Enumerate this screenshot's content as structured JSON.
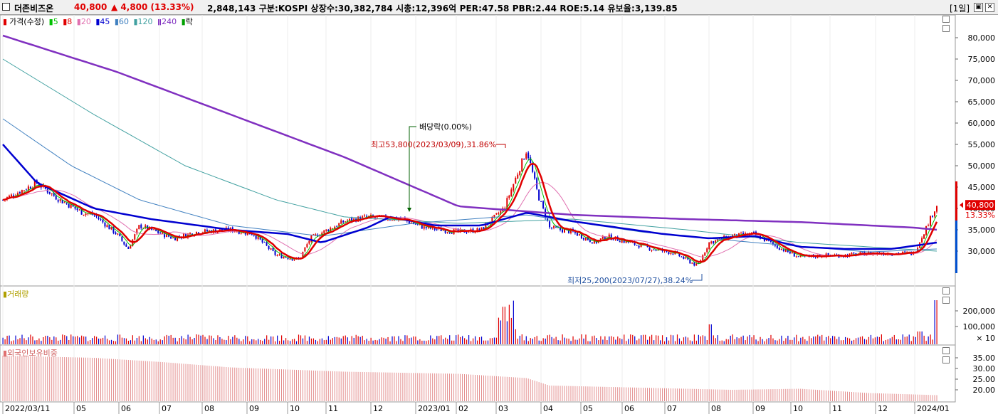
{
  "titlebar": {
    "stock_name": "더존비즈온",
    "price": "40,800",
    "change": "▲ 4,800 (13.33%)",
    "stats": "2,848,143  구분:KOSPI  상장수:30,382,784  시총:12,396억  PER:47.58  PBR:2.44  ROE:5.14  유보율:3,139.85",
    "period": "[1일]"
  },
  "legend": {
    "price_label": "가격(수정)",
    "ma_items": [
      {
        "label": "5",
        "color": "#00c000"
      },
      {
        "label": "8",
        "color": "#e00000"
      },
      {
        "label": "20",
        "color": "#e070b0"
      },
      {
        "label": "45",
        "color": "#0000d0"
      },
      {
        "label": "60",
        "color": "#4080c0"
      },
      {
        "label": "120",
        "color": "#40a0a0"
      },
      {
        "label": "240",
        "color": "#8030c0"
      }
    ],
    "extra_label": "락"
  },
  "annotations": {
    "dividend": "배당락(0.00%)",
    "high": "최고53,800(2023/03/09),31.86%",
    "low": "최저25,200(2023/07/27),38.24%"
  },
  "price_axis": [
    "80,000",
    "75,000",
    "70,000",
    "65,000",
    "60,000",
    "55,000",
    "50,000",
    "45,000",
    "40,000",
    "35,000",
    "30,000"
  ],
  "current_price_tag": {
    "price": "40,800",
    "pct": "13.33%"
  },
  "volume_panel": {
    "label": "거래량",
    "ticks": [
      "200,000",
      "100,000"
    ],
    "multiplier": "× 10"
  },
  "foreign_panel": {
    "label": "외국인보유비중",
    "ticks": [
      "35.00",
      "30.00",
      "25.00",
      "20.00"
    ]
  },
  "x_axis": [
    "2022/03/11",
    "05",
    "06",
    "07",
    "08",
    "09",
    "10",
    "11",
    "12",
    "2023/01",
    "02",
    "03",
    "04",
    "05",
    "06",
    "07",
    "08",
    "09",
    "10",
    "11",
    "12",
    "2024/01"
  ],
  "colors": {
    "up": "#e00000",
    "down": "#0000d0",
    "ma240": "#8030c0",
    "ma45": "#0000d0",
    "ma8": "#e00000"
  },
  "chart_data": [
    {
      "type": "line",
      "title": "더존비즈온 가격(수정)",
      "ylim": [
        25000,
        82000
      ],
      "series": [
        {
          "name": "가격(수정)",
          "points": [
            [
              0,
              42000
            ],
            [
              3,
              46000
            ],
            [
              5,
              42000
            ],
            [
              7,
              39000
            ],
            [
              8,
              38500
            ],
            [
              10,
              34000
            ],
            [
              11,
              30500
            ],
            [
              12,
              36000
            ],
            [
              15,
              33000
            ],
            [
              17,
              34500
            ],
            [
              20,
              35000
            ],
            [
              22,
              34000
            ],
            [
              24,
              29000
            ],
            [
              26,
              28000
            ],
            [
              27,
              33000
            ],
            [
              30,
              37000
            ],
            [
              32,
              38000
            ],
            [
              35,
              37500
            ],
            [
              37,
              35500
            ],
            [
              40,
              34500
            ],
            [
              42,
              35000
            ],
            [
              44,
              40000
            ],
            [
              46,
              53800
            ],
            [
              47,
              43000
            ],
            [
              48,
              35500
            ],
            [
              50,
              34500
            ],
            [
              52,
              32000
            ],
            [
              53,
              33500
            ],
            [
              55,
              32000
            ],
            [
              57,
              30500
            ],
            [
              59,
              29500
            ],
            [
              61,
              26500
            ],
            [
              62,
              32000
            ],
            [
              64,
              33500
            ],
            [
              66,
              34000
            ],
            [
              68,
              31000
            ],
            [
              70,
              28500
            ],
            [
              72,
              29000
            ],
            [
              74,
              29000
            ],
            [
              76,
              29500
            ],
            [
              78,
              29500
            ],
            [
              80,
              29500
            ],
            [
              82,
              40800
            ]
          ]
        },
        {
          "name": "240",
          "points": [
            [
              0,
              80500
            ],
            [
              10,
              72000
            ],
            [
              20,
              62000
            ],
            [
              30,
              52000
            ],
            [
              40,
              40500
            ],
            [
              50,
              38500
            ],
            [
              60,
              37500
            ],
            [
              70,
              36800
            ],
            [
              80,
              35500
            ],
            [
              82,
              35000
            ]
          ]
        },
        {
          "name": "45",
          "points": [
            [
              0,
              55000
            ],
            [
              3,
              46000
            ],
            [
              8,
              40000
            ],
            [
              13,
              37500
            ],
            [
              20,
              35000
            ],
            [
              25,
              34000
            ],
            [
              28,
              32000
            ],
            [
              32,
              35500
            ],
            [
              34,
              38000
            ],
            [
              38,
              36000
            ],
            [
              42,
              36000
            ],
            [
              46,
              39000
            ],
            [
              50,
              37000
            ],
            [
              54,
              35500
            ],
            [
              58,
              34000
            ],
            [
              62,
              33000
            ],
            [
              66,
              33500
            ],
            [
              70,
              31000
            ],
            [
              74,
              30500
            ],
            [
              78,
              30500
            ],
            [
              82,
              32000
            ]
          ]
        }
      ],
      "annotations": [
        "배당락(0.00%)",
        "최고53,800(2023/03/09),31.86%",
        "최저25,200(2023/07/27),38.24%"
      ]
    },
    {
      "type": "bar",
      "title": "거래량",
      "notes": "spikes near 2023/03 and 2024/01"
    },
    {
      "type": "bar",
      "title": "외국인보유비중",
      "ylim": [
        15,
        38
      ],
      "notes": "declining from ~36 to ~17"
    }
  ]
}
